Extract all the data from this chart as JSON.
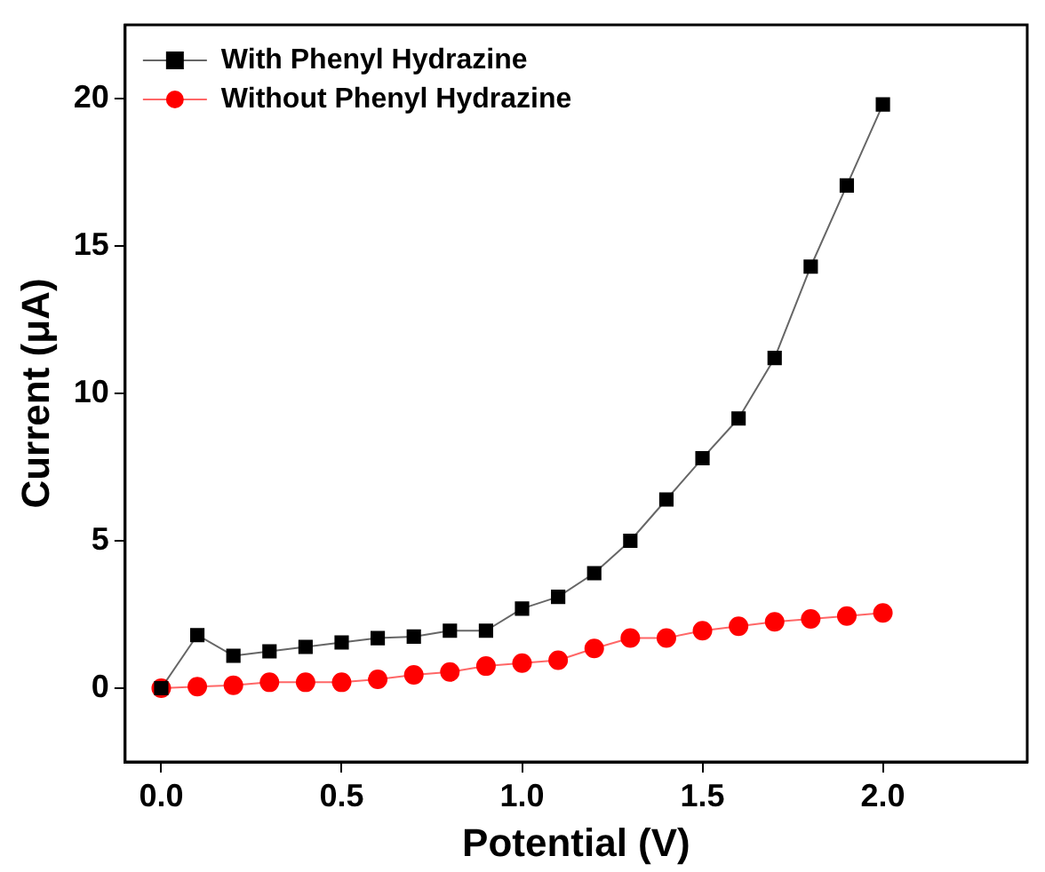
{
  "chart_data": {
    "type": "line",
    "xlabel": "Potential (V)",
    "ylabel": "Current (μA)",
    "x": [
      0,
      0.1,
      0.2,
      0.3,
      0.4,
      0.5,
      0.6,
      0.7,
      0.8,
      0.9,
      1.0,
      1.1,
      1.2,
      1.3,
      1.4,
      1.5,
      1.6,
      1.7,
      1.8,
      1.9,
      2.0
    ],
    "series": [
      {
        "name": "With Phenyl Hydrazine",
        "color": "#000000",
        "marker": "square",
        "values": [
          0,
          1.8,
          1.1,
          1.25,
          1.4,
          1.55,
          1.7,
          1.75,
          1.95,
          1.95,
          2.7,
          3.1,
          3.9,
          5.0,
          6.4,
          7.8,
          9.15,
          11.2,
          14.3,
          17.05,
          19.8
        ]
      },
      {
        "name": "Without Phenyl Hydrazine",
        "color": "#ff0000",
        "marker": "circle",
        "values": [
          0,
          0.05,
          0.1,
          0.2,
          0.2,
          0.2,
          0.3,
          0.45,
          0.55,
          0.75,
          0.85,
          0.95,
          1.35,
          1.7,
          1.7,
          1.95,
          2.1,
          2.25,
          2.35,
          2.45,
          2.55
        ]
      }
    ],
    "xlim": [
      -0.1,
      2.4
    ],
    "ylim": [
      -2.5,
      22.5
    ],
    "xticks": [
      {
        "value": 0,
        "label": "0.0"
      },
      {
        "value": 0.5,
        "label": "0.5"
      },
      {
        "value": 1,
        "label": "1.0"
      },
      {
        "value": 1.5,
        "label": "1.5"
      },
      {
        "value": 2,
        "label": "2.0"
      }
    ],
    "yticks": [
      0,
      5,
      10,
      15,
      20
    ],
    "grid": false,
    "legend": "top left",
    "line_style": "solid"
  }
}
